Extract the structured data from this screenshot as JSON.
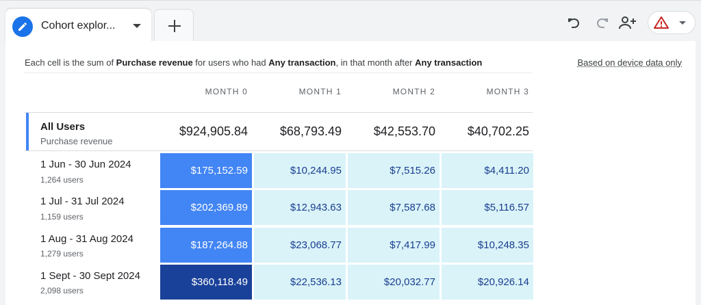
{
  "tab": {
    "label": "Cohort explor..."
  },
  "toolbar": {
    "undo_icon": "undo-icon",
    "redo_icon": "redo-icon",
    "share_icon": "add-person-icon",
    "warning_icon": "warning-icon"
  },
  "description": {
    "prefix": "Each cell is the sum of ",
    "metric": "Purchase revenue",
    "middle": " for users who had ",
    "inclusion": "Any transaction",
    "middle2": ", in that month after ",
    "return": "Any transaction"
  },
  "based_on": "Based on device data only",
  "columns": [
    "MONTH 0",
    "MONTH 1",
    "MONTH 2",
    "MONTH 3"
  ],
  "all_users": {
    "title": "All Users",
    "subtitle": "Purchase revenue",
    "values": [
      "$924,905.84",
      "$68,793.49",
      "$42,553.70",
      "$40,702.25"
    ]
  },
  "cohorts": [
    {
      "label": "1 Jun - 30 Jun 2024",
      "users": "1,264 users",
      "values": [
        "$175,152.59",
        "$10,244.95",
        "$7,515.26",
        "$4,411.20"
      ]
    },
    {
      "label": "1 Jul - 31 Jul 2024",
      "users": "1,159 users",
      "values": [
        "$202,369.89",
        "$12,943.63",
        "$7,587.68",
        "$5,116.57"
      ]
    },
    {
      "label": "1 Aug - 31 Aug 2024",
      "users": "1,279 users",
      "values": [
        "$187,264.88",
        "$23,068.77",
        "$7,417.99",
        "$10,248.35"
      ]
    },
    {
      "label": "1 Sept - 30 Sept 2024",
      "users": "2,098 users",
      "values": [
        "$360,118.49",
        "$22,536.13",
        "$20,032.77",
        "$20,926.14"
      ]
    }
  ],
  "colors": {
    "accent": "#4285f4",
    "dark_cell": "#1a4199",
    "light_cell": "#d9f3f8",
    "warning": "#c5221f"
  }
}
